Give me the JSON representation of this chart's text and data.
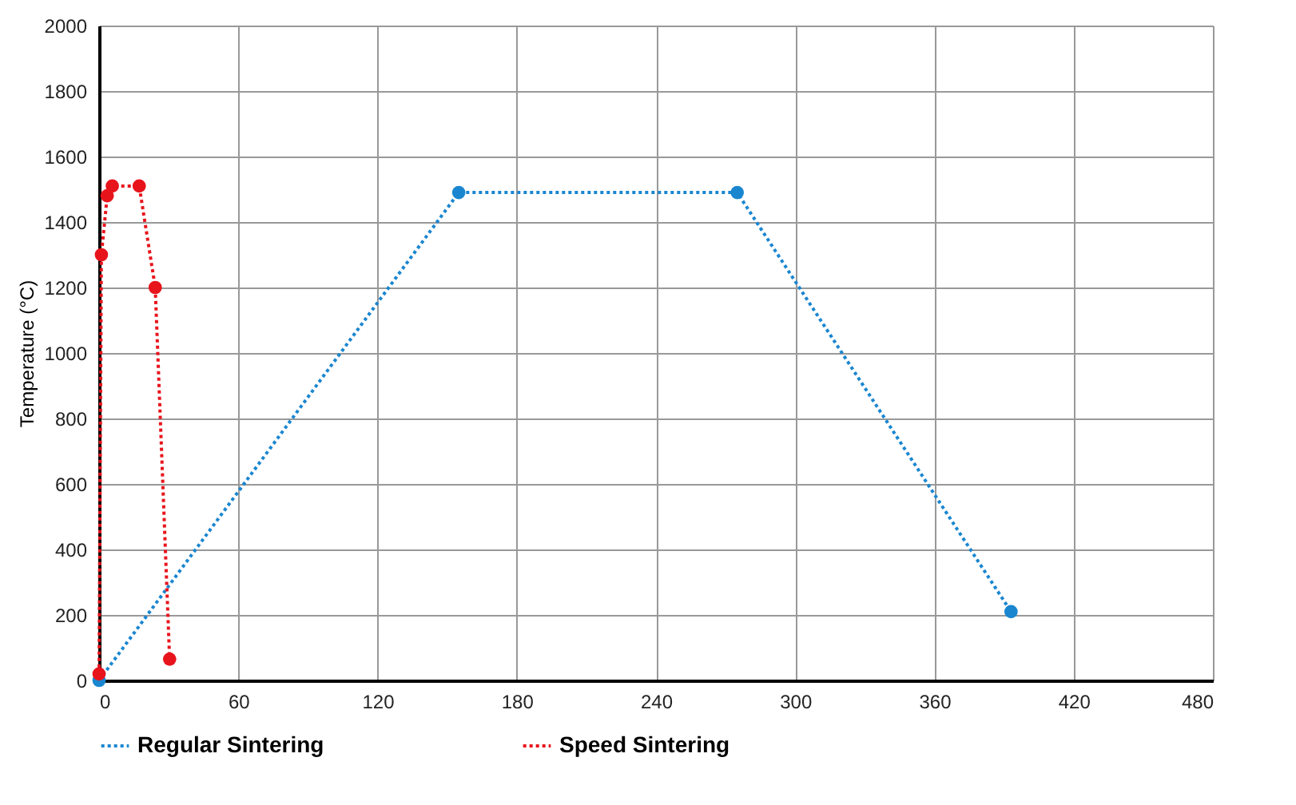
{
  "chart_data": {
    "type": "line",
    "ylabel": "Temperature (°C)",
    "xlim": [
      0,
      480
    ],
    "xticks": [
      0,
      60,
      120,
      180,
      240,
      300,
      360,
      420,
      480
    ],
    "ylim": [
      0,
      2000
    ],
    "yticks": [
      0,
      200,
      400,
      600,
      800,
      1000,
      1200,
      1400,
      1600,
      1800,
      2000
    ],
    "grid": true,
    "legend": "bottom",
    "marker": "circle",
    "line_style": "dotted",
    "series": [
      {
        "name": "Regular Sintering",
        "color": "#1a86d0",
        "x": [
          0,
          155,
          275,
          393
        ],
        "values": [
          0,
          1490,
          1490,
          210
        ]
      },
      {
        "name": "Speed Sintering",
        "color": "#e8141c",
        "x": [
          0,
          1,
          3.5,
          5.7,
          17.3,
          24.2,
          30.4
        ],
        "values": [
          20,
          1300,
          1480,
          1510,
          1510,
          1200,
          65
        ]
      }
    ]
  }
}
